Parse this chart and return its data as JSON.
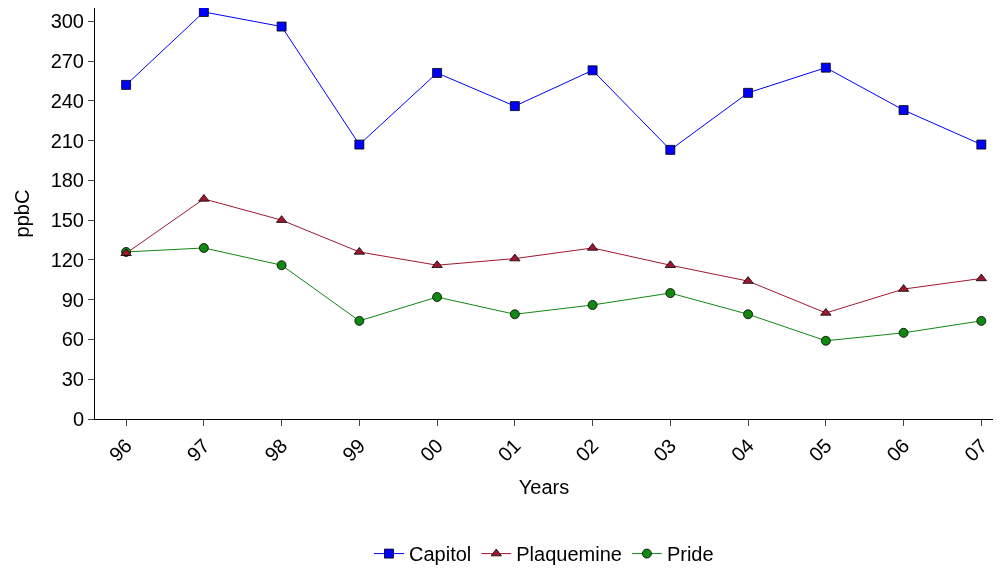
{
  "chart_data": {
    "type": "line",
    "xlabel": "Years",
    "ylabel": "ppbC",
    "categories": [
      "96",
      "97",
      "98",
      "99",
      "00",
      "01",
      "02",
      "03",
      "04",
      "05",
      "06",
      "07"
    ],
    "series": [
      {
        "name": "Capitol",
        "color": "#0000ff",
        "marker": "square",
        "values": [
          252,
          307,
          296,
          207,
          261,
          236,
          263,
          203,
          246,
          265,
          233,
          207
        ]
      },
      {
        "name": "Plaquemine",
        "color": "#a01830",
        "marker": "triangle",
        "values": [
          125,
          166,
          150,
          126,
          116,
          121,
          129,
          116,
          104,
          80,
          98,
          106
        ]
      },
      {
        "name": "Pride",
        "color": "#118811",
        "marker": "circle",
        "values": [
          126,
          129,
          116,
          74,
          92,
          79,
          86,
          95,
          79,
          59,
          65,
          74
        ]
      }
    ],
    "ylim": [
      0,
      310
    ],
    "yticks": [
      0,
      30,
      60,
      90,
      120,
      150,
      180,
      210,
      240,
      270,
      300
    ],
    "legend": "bottom"
  }
}
